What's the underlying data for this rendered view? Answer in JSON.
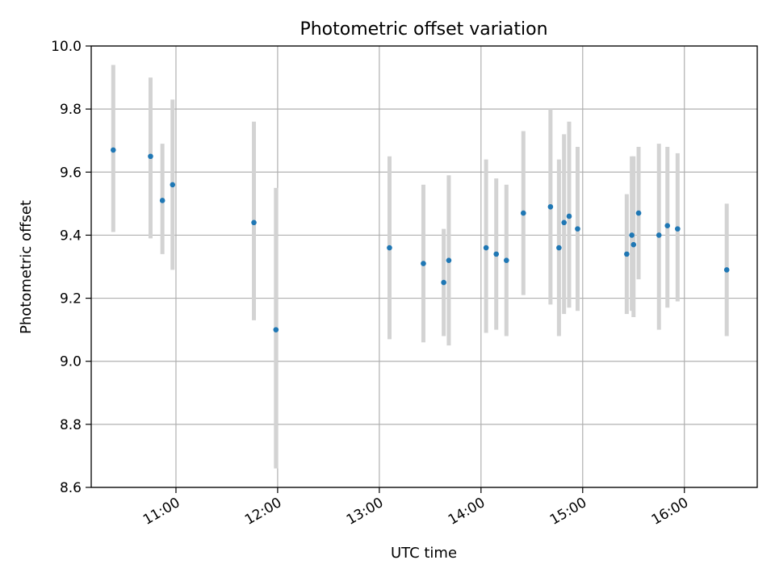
{
  "chart_data": {
    "type": "scatter",
    "title": "Photometric offset variation",
    "xlabel": "UTC time",
    "ylabel": "Photometric offset",
    "xlim": [
      "10:10",
      "16:43"
    ],
    "ylim": [
      8.6,
      10.0
    ],
    "x_ticks": [
      "11:00",
      "12:00",
      "13:00",
      "14:00",
      "15:00",
      "16:00"
    ],
    "y_ticks": [
      "8.6",
      "8.8",
      "9.0",
      "9.2",
      "9.4",
      "9.6",
      "9.8",
      "10.0"
    ],
    "grid": true,
    "colors": {
      "points": "#1f77b4",
      "error_bars": "#d3d3d3",
      "grid": "#b0b0b0"
    },
    "series": [
      {
        "points": [
          {
            "x": "10:23",
            "y": 9.67,
            "y_low": 9.41,
            "y_high": 9.94
          },
          {
            "x": "10:45",
            "y": 9.65,
            "y_low": 9.39,
            "y_high": 9.9
          },
          {
            "x": "10:52",
            "y": 9.51,
            "y_low": 9.34,
            "y_high": 9.69
          },
          {
            "x": "10:58",
            "y": 9.56,
            "y_low": 9.29,
            "y_high": 9.83
          },
          {
            "x": "11:46",
            "y": 9.44,
            "y_low": 9.13,
            "y_high": 9.76
          },
          {
            "x": "11:59",
            "y": 9.1,
            "y_low": 8.66,
            "y_high": 9.55
          },
          {
            "x": "13:06",
            "y": 9.36,
            "y_low": 9.07,
            "y_high": 9.65
          },
          {
            "x": "13:26",
            "y": 9.31,
            "y_low": 9.06,
            "y_high": 9.56
          },
          {
            "x": "13:38",
            "y": 9.25,
            "y_low": 9.08,
            "y_high": 9.42
          },
          {
            "x": "13:41",
            "y": 9.32,
            "y_low": 9.05,
            "y_high": 9.59
          },
          {
            "x": "14:03",
            "y": 9.36,
            "y_low": 9.09,
            "y_high": 9.64
          },
          {
            "x": "14:09",
            "y": 9.34,
            "y_low": 9.1,
            "y_high": 9.58
          },
          {
            "x": "14:15",
            "y": 9.32,
            "y_low": 9.08,
            "y_high": 9.56
          },
          {
            "x": "14:25",
            "y": 9.47,
            "y_low": 9.21,
            "y_high": 9.73
          },
          {
            "x": "14:41",
            "y": 9.49,
            "y_low": 9.18,
            "y_high": 9.8
          },
          {
            "x": "14:46",
            "y": 9.36,
            "y_low": 9.08,
            "y_high": 9.64
          },
          {
            "x": "14:49",
            "y": 9.44,
            "y_low": 9.15,
            "y_high": 9.72
          },
          {
            "x": "14:52",
            "y": 9.46,
            "y_low": 9.17,
            "y_high": 9.76
          },
          {
            "x": "14:57",
            "y": 9.42,
            "y_low": 9.16,
            "y_high": 9.68
          },
          {
            "x": "15:26",
            "y": 9.34,
            "y_low": 9.15,
            "y_high": 9.53
          },
          {
            "x": "15:29",
            "y": 9.4,
            "y_low": 9.16,
            "y_high": 9.65
          },
          {
            "x": "15:30",
            "y": 9.37,
            "y_low": 9.14,
            "y_high": 9.65
          },
          {
            "x": "15:33",
            "y": 9.47,
            "y_low": 9.26,
            "y_high": 9.68
          },
          {
            "x": "15:45",
            "y": 9.4,
            "y_low": 9.1,
            "y_high": 9.69
          },
          {
            "x": "15:50",
            "y": 9.43,
            "y_low": 9.17,
            "y_high": 9.68
          },
          {
            "x": "15:56",
            "y": 9.42,
            "y_low": 9.19,
            "y_high": 9.66
          },
          {
            "x": "16:25",
            "y": 9.29,
            "y_low": 9.08,
            "y_high": 9.5
          }
        ]
      }
    ]
  }
}
